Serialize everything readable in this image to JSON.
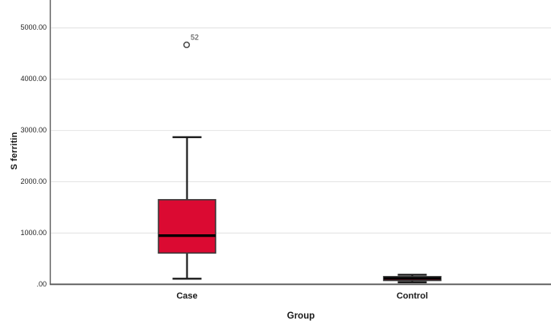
{
  "chart_data": {
    "type": "boxplot",
    "title": "",
    "xlabel": "Group",
    "ylabel": "S ferritin",
    "categories": [
      "Case",
      "Control"
    ],
    "ylim": [
      0,
      5545
    ],
    "grid": true,
    "yticks": [
      {
        "value": 5000,
        "label": "5000.00"
      },
      {
        "value": 4000,
        "label": "4000.00"
      },
      {
        "value": 3000,
        "label": "3000.00"
      },
      {
        "value": 2000,
        "label": "2000.00"
      },
      {
        "value": 1000,
        "label": "1000.00"
      },
      {
        "value": 0,
        "label": ".00"
      }
    ],
    "boxes": [
      {
        "category": "Case",
        "whisker_low": 110,
        "q1": 610,
        "median": 950,
        "q3": 1650,
        "whisker_high": 2870,
        "outliers": [
          {
            "value": 4670,
            "label": "52"
          }
        ]
      },
      {
        "category": "Control",
        "whisker_low": 40,
        "q1": 75,
        "median": 115,
        "q3": 150,
        "whisker_high": 185,
        "outliers": []
      }
    ],
    "colors": {
      "box_fill": "#DB0A32",
      "box_border": "#3A3A3A",
      "median": "#000000",
      "whisker": "#1C1C1C",
      "gridline": "#E4E4E4",
      "axis": "#5C5C5C",
      "outlier_stroke": "#4A4A4A",
      "background": "#FFFFFF"
    }
  }
}
